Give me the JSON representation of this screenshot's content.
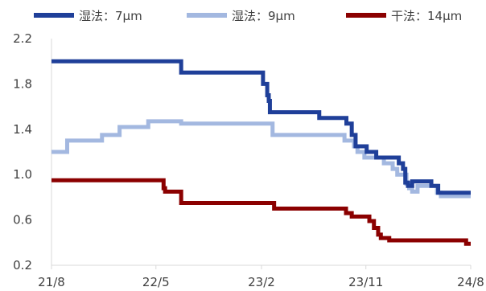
{
  "chart_data": {
    "type": "line",
    "title": "",
    "xlabel": "",
    "ylabel": "",
    "ylim": [
      0.2,
      2.2
    ],
    "xlim": [
      "2021-08",
      "2024-08"
    ],
    "yticks": [
      "0.2",
      "0.6",
      "1.0",
      "1.4",
      "1.8",
      "2.2"
    ],
    "xticks": [
      {
        "label": "21/8",
        "date": "2021-08"
      },
      {
        "label": "22/5",
        "date": "2022-05"
      },
      {
        "label": "23/2",
        "date": "2023-02"
      },
      {
        "label": "23/11",
        "date": "2023-11"
      },
      {
        "label": "24/8",
        "date": "2024-08"
      }
    ],
    "grid": false,
    "legend_position": "top",
    "series": [
      {
        "name": "湿法：7μm",
        "color": "#1f3f99",
        "step": true,
        "points": [
          [
            "2021-08-01",
            2.0
          ],
          [
            "2022-07-05",
            2.0
          ],
          [
            "2022-07-06",
            1.9
          ],
          [
            "2023-02-01",
            1.9
          ],
          [
            "2023-02-05",
            1.8
          ],
          [
            "2023-02-16",
            1.7
          ],
          [
            "2023-02-20",
            1.65
          ],
          [
            "2023-02-23",
            1.55
          ],
          [
            "2023-07-01",
            1.55
          ],
          [
            "2023-07-02",
            1.5
          ],
          [
            "2023-09-10",
            1.5
          ],
          [
            "2023-09-11",
            1.45
          ],
          [
            "2023-09-25",
            1.35
          ],
          [
            "2023-10-05",
            1.25
          ],
          [
            "2023-11-01",
            1.25
          ],
          [
            "2023-11-03",
            1.2
          ],
          [
            "2023-11-28",
            1.15
          ],
          [
            "2024-01-10",
            1.15
          ],
          [
            "2024-01-26",
            1.1
          ],
          [
            "2024-02-06",
            1.05
          ],
          [
            "2024-02-12",
            0.93
          ],
          [
            "2024-02-19",
            0.9
          ],
          [
            "2024-03-01",
            0.94
          ],
          [
            "2024-04-10",
            0.94
          ],
          [
            "2024-04-20",
            0.9
          ],
          [
            "2024-05-08",
            0.84
          ],
          [
            "2024-08-01",
            0.84
          ]
        ]
      },
      {
        "name": "湿法：9μm",
        "color": "#a3b8e0",
        "step": true,
        "points": [
          [
            "2021-08-01",
            1.2
          ],
          [
            "2021-09-10",
            1.2
          ],
          [
            "2021-09-11",
            1.3
          ],
          [
            "2021-12-10",
            1.3
          ],
          [
            "2021-12-11",
            1.35
          ],
          [
            "2022-01-25",
            1.35
          ],
          [
            "2022-01-26",
            1.42
          ],
          [
            "2022-04-10",
            1.42
          ],
          [
            "2022-04-11",
            1.47
          ],
          [
            "2022-07-05",
            1.47
          ],
          [
            "2022-07-06",
            1.45
          ],
          [
            "2023-03-01",
            1.45
          ],
          [
            "2023-03-02",
            1.35
          ],
          [
            "2023-09-05",
            1.35
          ],
          [
            "2023-09-06",
            1.3
          ],
          [
            "2023-10-01",
            1.25
          ],
          [
            "2023-10-10",
            1.2
          ],
          [
            "2023-10-28",
            1.15
          ],
          [
            "2023-12-18",
            1.1
          ],
          [
            "2024-01-10",
            1.05
          ],
          [
            "2024-01-22",
            1.0
          ],
          [
            "2024-02-15",
            0.92
          ],
          [
            "2024-02-22",
            0.88
          ],
          [
            "2024-03-01",
            0.85
          ],
          [
            "2024-03-15",
            0.9
          ],
          [
            "2024-04-25",
            0.9
          ],
          [
            "2024-05-05",
            0.84
          ],
          [
            "2024-05-15",
            0.81
          ],
          [
            "2024-08-01",
            0.81
          ]
        ]
      },
      {
        "name": "干法：14μm",
        "color": "#8b0000",
        "step": true,
        "points": [
          [
            "2021-08-01",
            0.95
          ],
          [
            "2022-05-20",
            0.95
          ],
          [
            "2022-05-21",
            0.88
          ],
          [
            "2022-05-25",
            0.85
          ],
          [
            "2022-07-05",
            0.85
          ],
          [
            "2022-07-06",
            0.75
          ],
          [
            "2023-03-05",
            0.75
          ],
          [
            "2023-03-06",
            0.7
          ],
          [
            "2023-09-01",
            0.7
          ],
          [
            "2023-09-10",
            0.66
          ],
          [
            "2023-09-25",
            0.63
          ],
          [
            "2023-11-05",
            0.63
          ],
          [
            "2023-11-10",
            0.59
          ],
          [
            "2023-11-22",
            0.53
          ],
          [
            "2023-12-03",
            0.47
          ],
          [
            "2023-12-10",
            0.44
          ],
          [
            "2024-01-01",
            0.42
          ],
          [
            "2024-07-12",
            0.42
          ],
          [
            "2024-07-20",
            0.39
          ],
          [
            "2024-08-01",
            0.39
          ]
        ]
      }
    ]
  }
}
